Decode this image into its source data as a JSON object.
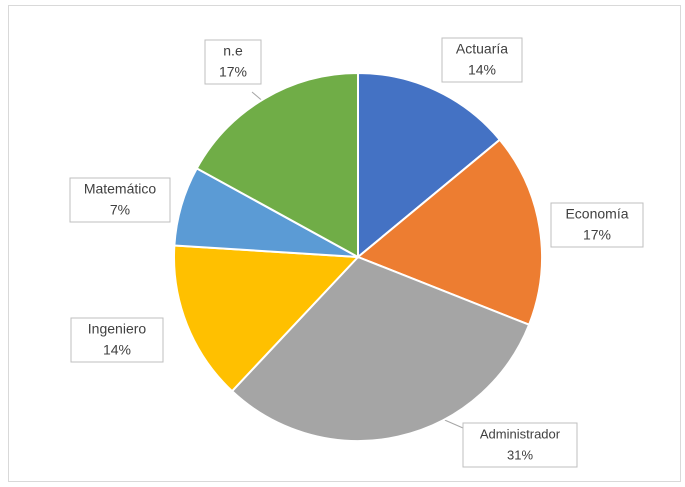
{
  "chart_data": {
    "type": "pie",
    "categories": [
      "Actuaría",
      "Economía",
      "Administrador",
      "Ingeniero",
      "Matemático",
      "n.e"
    ],
    "values": [
      14,
      17,
      31,
      14,
      7,
      17
    ],
    "value_labels": [
      "14%",
      "17%",
      "31%",
      "14%",
      "7%",
      "17%"
    ],
    "colors": [
      "#4472c4",
      "#ed7d31",
      "#a5a5a5",
      "#ffc000",
      "#5b9bd5",
      "#70ad47"
    ]
  }
}
